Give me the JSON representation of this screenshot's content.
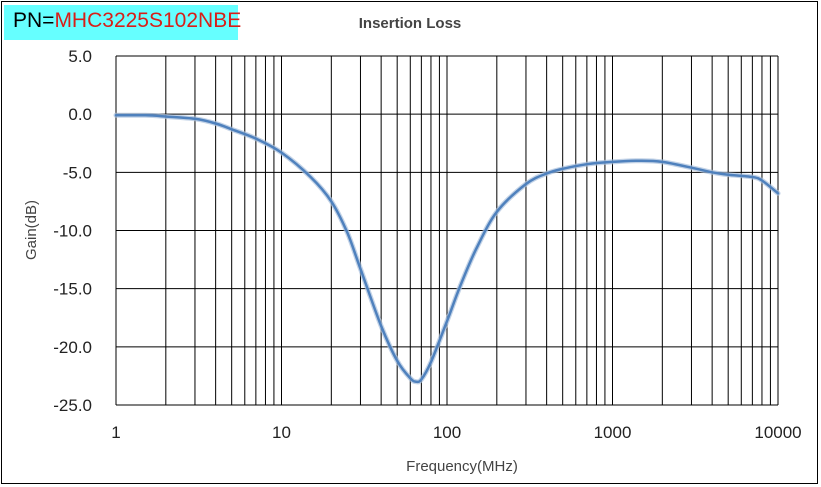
{
  "part_number": {
    "prefix": "PN=",
    "value": "MHC3225S102NBE"
  },
  "chart_data": {
    "type": "line",
    "title": "Insertion Loss",
    "xlabel": "Frequency(MHz)",
    "ylabel": "Gain(dB)",
    "x_scale": "log",
    "xlim": [
      1,
      10000
    ],
    "ylim": [
      -25,
      5
    ],
    "grid": true,
    "x_ticks": [
      "1",
      "10",
      "100",
      "1000",
      "10000"
    ],
    "y_ticks": [
      "5.0",
      "0.0",
      "-5.0",
      "-10.0",
      "-15.0",
      "-20.0",
      "-25.0"
    ],
    "line_color": "#4f81bd",
    "series": [
      {
        "x": [
          1,
          1.5,
          2,
          3,
          4,
          5,
          7,
          10,
          15,
          20,
          25,
          30,
          40,
          50,
          60,
          65,
          70,
          80,
          100,
          120,
          150,
          200,
          300,
          400,
          500,
          700,
          1000,
          1500,
          2000,
          3000,
          4000,
          5000,
          7000,
          8000,
          10000
        ],
        "y": [
          -0.1,
          -0.1,
          -0.2,
          -0.4,
          -0.8,
          -1.3,
          -2.1,
          -3.3,
          -5.4,
          -7.5,
          -10.2,
          -13.3,
          -18.2,
          -21.2,
          -22.7,
          -23.0,
          -22.8,
          -21.3,
          -17.8,
          -14.8,
          -11.6,
          -8.4,
          -6.0,
          -5.1,
          -4.7,
          -4.3,
          -4.1,
          -4.0,
          -4.1,
          -4.6,
          -5.0,
          -5.2,
          -5.4,
          -5.7,
          -6.8
        ]
      }
    ]
  }
}
